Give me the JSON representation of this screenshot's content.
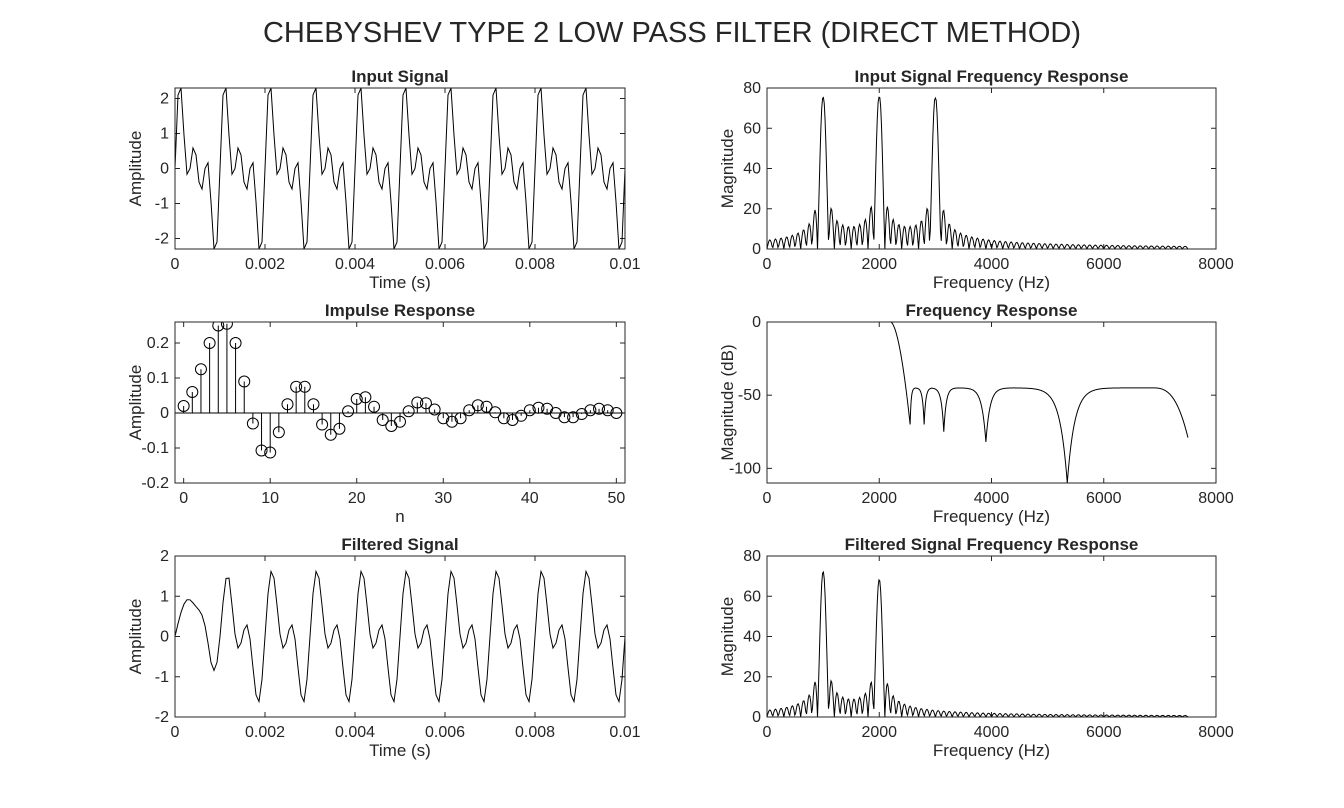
{
  "figure": {
    "title": "CHEBYSHEV TYPE 2 LOW PASS FILTER (DIRECT METHOD)"
  },
  "chart_data": [
    {
      "id": "input-signal",
      "type": "line",
      "title": "Input Signal",
      "xlabel": "Time (s)",
      "ylabel": "Amplitude",
      "xlim": [
        0,
        0.01
      ],
      "ylim": [
        -2.3,
        2.3
      ],
      "xticks": [
        0,
        0.002,
        0.004,
        0.006,
        0.008,
        0.01
      ],
      "yticks": [
        -2,
        -1,
        0,
        1,
        2
      ],
      "xticklabels": [
        "0",
        "0.002",
        "0.004",
        "0.006",
        "0.008",
        "0.01"
      ],
      "yticklabels": [
        "-2",
        "-1",
        "0",
        "1",
        "2"
      ],
      "grid": false,
      "color": "#000000",
      "signal": {
        "components": [
          {
            "freq": 1000,
            "amp": 1
          },
          {
            "freq": 2000,
            "amp": 1
          },
          {
            "freq": 3000,
            "amp": 1
          }
        ],
        "fs": 15000,
        "t_end": 0.01
      }
    },
    {
      "id": "input-spectrum",
      "type": "line",
      "title": "Input Signal Frequency Response",
      "xlabel": "Frequency (Hz)",
      "ylabel": "Magnitude",
      "xlim": [
        0,
        8000
      ],
      "ylim": [
        0,
        80
      ],
      "xticks": [
        0,
        2000,
        4000,
        6000,
        8000
      ],
      "yticks": [
        0,
        20,
        40,
        60,
        80
      ],
      "xticklabels": [
        "0",
        "2000",
        "4000",
        "6000",
        "8000"
      ],
      "yticklabels": [
        "0",
        "20",
        "40",
        "60",
        "80"
      ],
      "grid": false,
      "color": "#000000",
      "spectrum": {
        "peaks": [
          {
            "freq": 1000,
            "mag": 75
          },
          {
            "freq": 2000,
            "mag": 75
          },
          {
            "freq": 3000,
            "mag": 75
          }
        ],
        "f_end": 7500
      }
    },
    {
      "id": "impulse-response",
      "type": "stem",
      "title": "Impulse Response",
      "xlabel": "n",
      "ylabel": "Amplitude",
      "xlim": [
        -1,
        51
      ],
      "ylim": [
        -0.2,
        0.26
      ],
      "xticks": [
        0,
        10,
        20,
        30,
        40,
        50
      ],
      "yticks": [
        -0.2,
        -0.1,
        0,
        0.1,
        0.2
      ],
      "xticklabels": [
        "0",
        "10",
        "20",
        "30",
        "40",
        "50"
      ],
      "yticklabels": [
        "-0.2",
        "-0.1",
        "0",
        "0.1",
        "0.2"
      ],
      "grid": false,
      "color": "#000000",
      "x": [
        0,
        1,
        2,
        3,
        4,
        5,
        6,
        7,
        8,
        9,
        10,
        11,
        12,
        13,
        14,
        15,
        16,
        17,
        18,
        19,
        20,
        21,
        22,
        23,
        24,
        25,
        26,
        27,
        28,
        29,
        30,
        31,
        32,
        33,
        34,
        35,
        36,
        37,
        38,
        39,
        40,
        41,
        42,
        43,
        44,
        45,
        46,
        47,
        48,
        49,
        50
      ],
      "y": [
        0.02,
        0.06,
        0.125,
        0.2,
        0.25,
        0.255,
        0.2,
        0.09,
        -0.03,
        -0.107,
        -0.113,
        -0.055,
        0.025,
        0.075,
        0.075,
        0.025,
        -0.033,
        -0.062,
        -0.045,
        0.005,
        0.04,
        0.045,
        0.018,
        -0.02,
        -0.037,
        -0.025,
        0.005,
        0.03,
        0.028,
        0.01,
        -0.015,
        -0.025,
        -0.015,
        0.008,
        0.022,
        0.018,
        0.002,
        -0.015,
        -0.02,
        -0.008,
        0.008,
        0.015,
        0.012,
        0.0,
        -0.012,
        -0.012,
        -0.003,
        0.008,
        0.012,
        0.008,
        0.0
      ]
    },
    {
      "id": "frequency-response",
      "type": "line",
      "title": "Frequency Response",
      "xlabel": "Frequency (Hz)",
      "ylabel": "Magnitude (dB)",
      "xlim": [
        0,
        8000
      ],
      "ylim": [
        -110,
        0
      ],
      "xticks": [
        0,
        2000,
        4000,
        6000,
        8000
      ],
      "yticks": [
        -100,
        -50,
        0
      ],
      "xticklabels": [
        "0",
        "2000",
        "4000",
        "6000",
        "8000"
      ],
      "yticklabels": [
        "-100",
        "-50",
        "0"
      ],
      "grid": false,
      "color": "#000000",
      "response": {
        "passband_edge": 2200,
        "stopband_start": 2550,
        "stopband_level": -45,
        "zeros": [
          {
            "freq": 2550,
            "db": -70
          },
          {
            "freq": 2800,
            "db": -70
          },
          {
            "freq": 3150,
            "db": -75
          },
          {
            "freq": 3900,
            "db": -82
          },
          {
            "freq": 5350,
            "db": -110
          }
        ],
        "end": {
          "freq": 7500,
          "db": -79
        }
      }
    },
    {
      "id": "filtered-signal",
      "type": "line",
      "title": "Filtered Signal",
      "xlabel": "Time (s)",
      "ylabel": "Amplitude",
      "xlim": [
        0,
        0.01
      ],
      "ylim": [
        -2,
        2
      ],
      "xticks": [
        0,
        0.002,
        0.004,
        0.006,
        0.008,
        0.01
      ],
      "yticks": [
        -2,
        -1,
        0,
        1,
        2
      ],
      "xticklabels": [
        "0",
        "0.002",
        "0.004",
        "0.006",
        "0.008",
        "0.01"
      ],
      "yticklabels": [
        "-2",
        "-1",
        "0",
        "1",
        "2"
      ],
      "grid": false,
      "color": "#000000",
      "signal": {
        "components": [
          {
            "freq": 1000,
            "amp": 0.97
          },
          {
            "freq": 2000,
            "amp": 0.9
          }
        ],
        "fs": 15000,
        "t_end": 0.01,
        "transient_until": 0.0012
      }
    },
    {
      "id": "filtered-spectrum",
      "type": "line",
      "title": "Filtered Signal Frequency Response",
      "xlabel": "Frequency (Hz)",
      "ylabel": "Magnitude",
      "xlim": [
        0,
        8000
      ],
      "ylim": [
        0,
        80
      ],
      "xticks": [
        0,
        2000,
        4000,
        6000,
        8000
      ],
      "yticks": [
        0,
        20,
        40,
        60,
        80
      ],
      "xticklabels": [
        "0",
        "2000",
        "4000",
        "6000",
        "8000"
      ],
      "yticklabels": [
        "0",
        "20",
        "40",
        "60",
        "80"
      ],
      "grid": false,
      "color": "#000000",
      "spectrum": {
        "peaks": [
          {
            "freq": 1000,
            "mag": 72
          },
          {
            "freq": 2000,
            "mag": 68
          }
        ],
        "f_end": 7500
      }
    }
  ]
}
